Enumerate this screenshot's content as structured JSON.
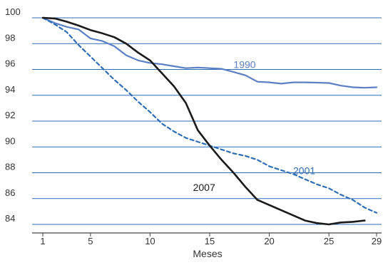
{
  "chart_data": {
    "type": "line",
    "title": "",
    "xlabel": "Meses",
    "ylabel": "",
    "xlim": [
      1,
      29
    ],
    "ylim": [
      83.3,
      100
    ],
    "x_ticks": [
      1,
      5,
      10,
      15,
      20,
      25,
      29
    ],
    "y_ticks": [
      84,
      86,
      88,
      90,
      92,
      94,
      96,
      98,
      100
    ],
    "grid": "horizontal",
    "colors": {
      "grid": "#2f6eb5",
      "axis": "#444444"
    },
    "series": [
      {
        "name": "1990",
        "color": "#5b7fc4",
        "dash": "solid",
        "x": [
          1,
          2,
          3,
          4,
          5,
          6,
          7,
          8,
          9,
          10,
          11,
          12,
          13,
          14,
          15,
          16,
          17,
          18,
          19,
          20,
          21,
          22,
          23,
          24,
          25,
          26,
          27,
          28,
          29
        ],
        "values": [
          100,
          99.6,
          99.3,
          99.1,
          98.4,
          98.2,
          97.8,
          97.1,
          96.7,
          96.5,
          96.4,
          96.25,
          96.1,
          96.15,
          96.1,
          96.05,
          95.8,
          95.55,
          95.05,
          95.0,
          94.9,
          95.0,
          95.0,
          94.98,
          94.95,
          94.75,
          94.62,
          94.58,
          94.62
        ],
        "label_pos": [
          17,
          96.1
        ]
      },
      {
        "name": "2001",
        "color": "#2f6eb5",
        "dash": "dashed",
        "x": [
          1,
          2,
          3,
          4,
          5,
          6,
          7,
          8,
          9,
          10,
          11,
          12,
          13,
          14,
          15,
          16,
          17,
          18,
          19,
          20,
          21,
          22,
          23,
          24,
          25,
          26,
          27,
          28,
          29
        ],
        "values": [
          100,
          99.5,
          98.9,
          97.9,
          97.0,
          96.1,
          95.2,
          94.4,
          93.5,
          92.7,
          91.8,
          91.2,
          90.7,
          90.4,
          90.1,
          89.8,
          89.5,
          89.3,
          89.0,
          88.5,
          88.2,
          87.9,
          87.5,
          87.1,
          86.8,
          86.3,
          85.9,
          85.3,
          84.9
        ],
        "label_pos": [
          22,
          87.9
        ]
      },
      {
        "name": "2007",
        "color": "#1a1a1a",
        "dash": "solid",
        "x": [
          1,
          2,
          3,
          4,
          5,
          6,
          7,
          8,
          9,
          10,
          11,
          12,
          13,
          14,
          15,
          16,
          17,
          18,
          19,
          20,
          21,
          22,
          23,
          24,
          25,
          26,
          27,
          28
        ],
        "values": [
          100,
          99.95,
          99.7,
          99.4,
          99.05,
          98.8,
          98.5,
          98.0,
          97.3,
          96.7,
          95.7,
          94.7,
          93.4,
          91.3,
          90.1,
          89.0,
          88.0,
          86.9,
          85.9,
          85.5,
          85.1,
          84.7,
          84.3,
          84.1,
          84.0,
          84.15,
          84.2,
          84.3
        ],
        "label_pos": [
          13.6,
          86.6
        ]
      }
    ]
  }
}
